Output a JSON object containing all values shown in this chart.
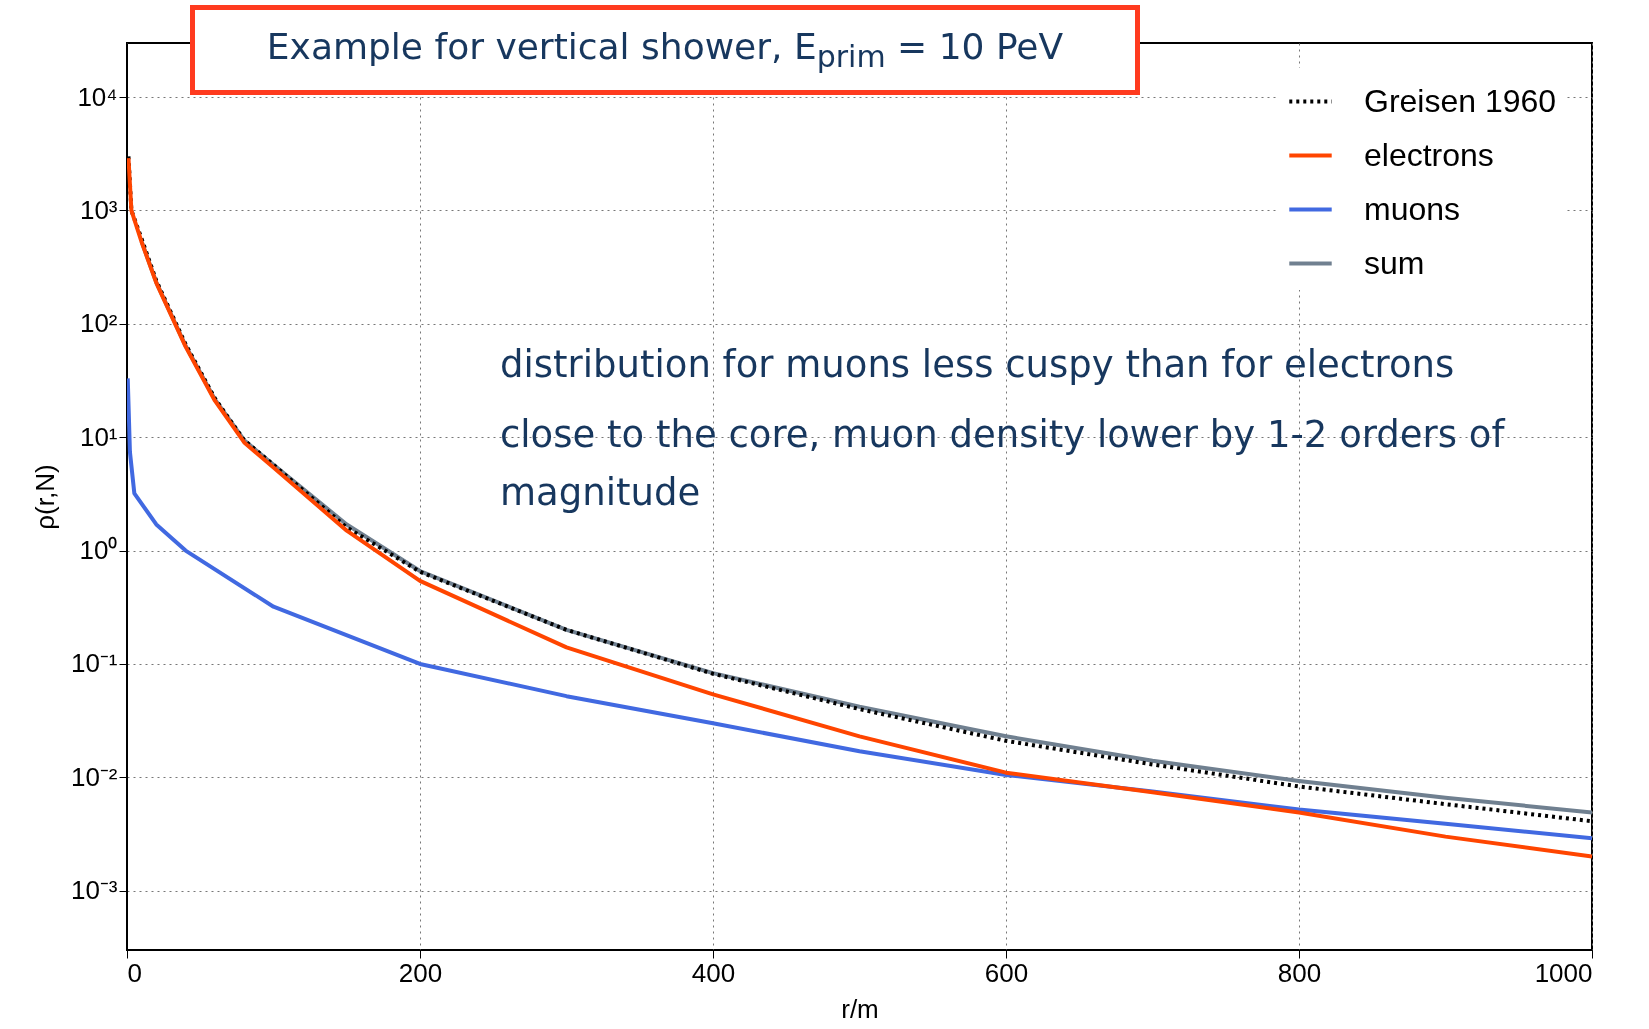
{
  "chart_data": {
    "type": "line",
    "title": "Example for vertical shower, E$_{prim}$ = 10 PeV",
    "xlabel": "r/m",
    "ylabel": "ρ(r,N)",
    "log": "y",
    "grid": true,
    "legend": "top right",
    "marker": "none",
    "xlim": [
      0,
      1000
    ],
    "xticks": [
      0,
      200,
      400,
      600,
      800,
      1000
    ],
    "ylim": [
      0.0003,
      30000
    ],
    "yticks": [
      {
        "value": 0.001,
        "label": "10⁻³"
      },
      {
        "value": 0.01,
        "label": "10⁻²"
      },
      {
        "value": 0.1,
        "label": "10⁻¹"
      },
      {
        "value": 1,
        "label": "10⁰"
      },
      {
        "value": 10,
        "label": "10¹"
      },
      {
        "value": 100,
        "label": "10²"
      },
      {
        "value": 1000,
        "label": "10³"
      },
      {
        "value": 10000,
        "label": "10⁴"
      }
    ],
    "annotations": [
      "distribution for muons less cuspy than for electrons",
      "close to the core, muon density lower by 1-2 orders of magnitude"
    ],
    "series": [
      {
        "name": "Greisen 1960",
        "color": "#000000",
        "line_style": "dotted",
        "x": [
          1,
          3,
          10,
          20,
          40,
          60,
          80,
          100,
          150,
          200,
          300,
          400,
          500,
          600,
          700,
          800,
          900,
          1000
        ],
        "values": [
          3000,
          1000,
          560,
          240,
          66,
          22,
          9.4,
          5.7,
          1.6,
          0.65,
          0.2,
          0.082,
          0.04,
          0.021,
          0.013,
          0.0083,
          0.0058,
          0.0041
        ]
      },
      {
        "name": "electrons",
        "color": "#ff4500",
        "line_style": "solid",
        "x": [
          1,
          3,
          10,
          20,
          40,
          60,
          80,
          100,
          150,
          200,
          300,
          400,
          500,
          600,
          700,
          800,
          900,
          1000
        ],
        "values": [
          2900,
          1000,
          525,
          230,
          63,
          21,
          9,
          5.4,
          1.5,
          0.54,
          0.14,
          0.054,
          0.023,
          0.011,
          0.0074,
          0.0049,
          0.003,
          0.002
        ]
      },
      {
        "name": "muons",
        "color": "#4169e1",
        "line_style": "solid",
        "x": [
          0.5,
          2,
          5,
          20,
          40,
          100,
          200,
          300,
          400,
          500,
          600,
          700,
          800,
          900,
          1000
        ],
        "values": [
          33,
          7.4,
          3.2,
          1.7,
          1,
          0.32,
          0.1,
          0.052,
          0.03,
          0.017,
          0.0105,
          0.0075,
          0.0052,
          0.0039,
          0.0029
        ]
      },
      {
        "name": "sum",
        "color": "#708090",
        "line_style": "solid",
        "x": [
          10,
          20,
          40,
          60,
          80,
          100,
          150,
          200,
          300,
          400,
          500,
          600,
          700,
          800,
          900,
          1000
        ],
        "values": [
          530,
          232,
          64,
          21.5,
          9.4,
          5.7,
          1.7,
          0.66,
          0.2,
          0.083,
          0.042,
          0.023,
          0.014,
          0.0093,
          0.0066,
          0.0049
        ]
      }
    ]
  }
}
